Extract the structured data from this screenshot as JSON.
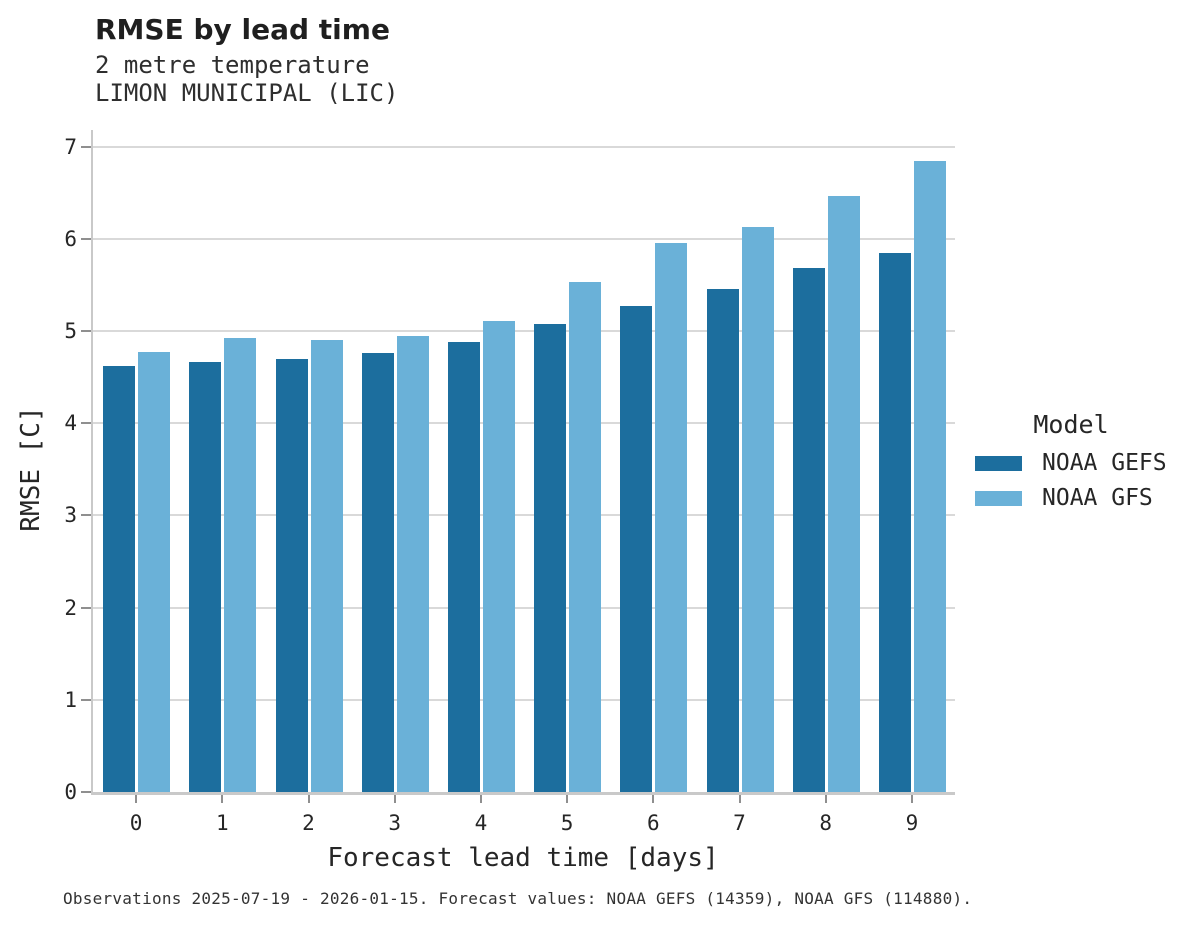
{
  "header": {
    "title": "RMSE by lead time",
    "subtitle_line1": "2 metre temperature",
    "subtitle_line2": "LIMON MUNICIPAL (LIC)"
  },
  "legend": {
    "title": "Model"
  },
  "footer": {
    "note": "Observations 2025-07-19 - 2026-01-15. Forecast values: NOAA GEFS (14359), NOAA GFS (114880)."
  },
  "chart_data": {
    "type": "bar",
    "title": "RMSE by lead time",
    "subtitle": [
      "2 metre temperature",
      "LIMON MUNICIPAL (LIC)"
    ],
    "categories": [
      "0",
      "1",
      "2",
      "3",
      "4",
      "5",
      "6",
      "7",
      "8",
      "9"
    ],
    "series": [
      {
        "name": "NOAA GEFS",
        "color": "#1c6e9e",
        "values": [
          4.62,
          4.66,
          4.7,
          4.76,
          4.88,
          5.08,
          5.27,
          5.45,
          5.68,
          5.84
        ]
      },
      {
        "name": "NOAA GFS",
        "color": "#6ab1d8",
        "values": [
          4.77,
          4.92,
          4.9,
          4.95,
          5.11,
          5.53,
          5.95,
          6.13,
          6.46,
          6.84
        ]
      }
    ],
    "xlabel": "Forecast lead time [days]",
    "ylabel": "RMSE [C]",
    "ylim": [
      0,
      7
    ],
    "yticks": [
      0,
      1,
      2,
      3,
      4,
      5,
      6,
      7
    ],
    "grid": "horizontal",
    "legend_position": "right",
    "legend_title": "Model",
    "colors": {
      "grid": "#d9d9d9",
      "spine": "#c9c9c9",
      "tick": "#8f8f8f",
      "text": "#262626"
    }
  }
}
